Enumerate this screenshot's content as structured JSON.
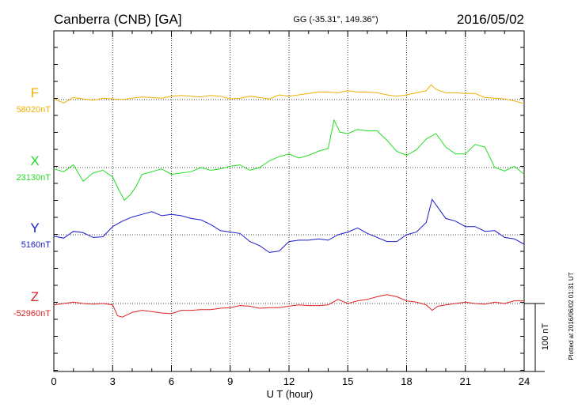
{
  "header": {
    "station": "Canberra (CNB)  [GA]",
    "coords": "GG (-35.31°, 149.36°)",
    "date": "2016/05/02"
  },
  "footer": {
    "plotted": "Plotted at 2016/06/02 01:31  UT"
  },
  "colors": {
    "F": "#f0b000",
    "X": "#22dd22",
    "Y": "#1a1acc",
    "Z": "#dd2222"
  },
  "chart_data": {
    "type": "line",
    "xlabel": "U T (hour)",
    "xlim": [
      0,
      24
    ],
    "xticks": [
      0,
      3,
      6,
      9,
      12,
      15,
      18,
      21,
      24
    ],
    "grid": true,
    "scale_bar": {
      "label": "100 nT",
      "value_nT": 100
    },
    "series": [
      {
        "name": "F",
        "baseline_label": "58020nT",
        "baseline": 58020,
        "x": [
          0,
          0.5,
          1,
          1.5,
          2,
          2.5,
          3,
          3.5,
          4,
          4.5,
          5,
          5.5,
          6,
          6.5,
          7,
          7.5,
          8,
          8.5,
          9,
          9.5,
          10,
          10.5,
          11,
          11.5,
          12,
          12.5,
          13,
          13.5,
          14,
          14.5,
          15,
          15.5,
          16,
          16.5,
          17,
          17.5,
          18,
          18.5,
          19,
          19.25,
          19.5,
          20,
          20.5,
          21,
          21.5,
          22,
          22.5,
          23,
          23.5,
          24
        ],
        "values": [
          58021,
          58015,
          58023,
          58021,
          58019,
          58022,
          58021,
          58020,
          58022,
          58024,
          58023,
          58022,
          58025,
          58026,
          58025,
          58024,
          58026,
          58025,
          58021,
          58022,
          58025,
          58023,
          58021,
          58027,
          58025,
          58027,
          58029,
          58031,
          58031,
          58030,
          58033,
          58031,
          58031,
          58030,
          58027,
          58025,
          58027,
          58030,
          58033,
          58042,
          58035,
          58030,
          58030,
          58029,
          58029,
          58023,
          58022,
          58021,
          58018,
          58014
        ]
      },
      {
        "name": "X",
        "baseline_label": "23130nT",
        "baseline": 23130,
        "x": [
          0,
          0.5,
          1,
          1.5,
          2,
          2.5,
          3,
          3.3,
          3.6,
          3.9,
          4.2,
          4.5,
          5,
          5.5,
          6,
          6.5,
          7,
          7.5,
          8,
          8.5,
          9,
          9.5,
          10,
          10.5,
          11,
          11.5,
          12,
          12.5,
          13,
          13.5,
          14,
          14.3,
          14.6,
          15,
          15.5,
          16,
          16.5,
          17,
          17.5,
          18,
          18.5,
          19,
          19.5,
          20,
          20.5,
          21,
          21.5,
          22,
          22.5,
          23,
          23.5,
          24
        ],
        "values": [
          23128,
          23124,
          23134,
          23110,
          23122,
          23126,
          23116,
          23098,
          23082,
          23090,
          23102,
          23120,
          23124,
          23128,
          23120,
          23122,
          23124,
          23130,
          23126,
          23128,
          23132,
          23134,
          23126,
          23130,
          23140,
          23146,
          23150,
          23144,
          23148,
          23154,
          23158,
          23200,
          23182,
          23180,
          23186,
          23184,
          23184,
          23170,
          23154,
          23148,
          23156,
          23172,
          23180,
          23160,
          23150,
          23150,
          23164,
          23160,
          23130,
          23125,
          23132,
          23120
        ]
      },
      {
        "name": "Y",
        "baseline_label": "5160nT",
        "baseline": 5160,
        "x": [
          0,
          0.5,
          1,
          1.5,
          2,
          2.5,
          3,
          3.5,
          4,
          4.5,
          5,
          5.5,
          6,
          6.5,
          7,
          7.5,
          8,
          8.5,
          9,
          9.5,
          10,
          10.5,
          11,
          11.5,
          12,
          12.5,
          13,
          13.5,
          14,
          14.5,
          15,
          15.5,
          16,
          16.5,
          17,
          17.5,
          18,
          18.5,
          19,
          19.3,
          19.6,
          20,
          20.5,
          21,
          21.5,
          22,
          22.5,
          23,
          23.5,
          24
        ],
        "values": [
          5158,
          5155,
          5165,
          5163,
          5156,
          5157,
          5172,
          5180,
          5186,
          5190,
          5194,
          5188,
          5190,
          5188,
          5184,
          5182,
          5175,
          5166,
          5164,
          5162,
          5150,
          5144,
          5134,
          5136,
          5150,
          5152,
          5152,
          5154,
          5152,
          5160,
          5164,
          5170,
          5162,
          5156,
          5150,
          5150,
          5160,
          5164,
          5178,
          5212,
          5200,
          5184,
          5180,
          5172,
          5172,
          5165,
          5166,
          5156,
          5154,
          5146
        ]
      },
      {
        "name": "Z",
        "baseline_label": "-52960nT",
        "baseline": -52960,
        "x": [
          0,
          0.5,
          1,
          1.5,
          2,
          2.5,
          3,
          3.25,
          3.5,
          4,
          4.5,
          5,
          5.5,
          6,
          6.5,
          7,
          7.5,
          8,
          8.5,
          9,
          9.5,
          10,
          10.5,
          11,
          11.5,
          12,
          12.5,
          13,
          13.5,
          14,
          14.5,
          15,
          15.5,
          16,
          16.5,
          17,
          17.5,
          18,
          18.5,
          19,
          19.3,
          19.6,
          20,
          20.5,
          21,
          21.5,
          22,
          22.5,
          23,
          23.5,
          24
        ],
        "values": [
          -52962,
          -52960,
          -52958,
          -52960,
          -52961,
          -52960,
          -52962,
          -52978,
          -52980,
          -52973,
          -52970,
          -52972,
          -52974,
          -52975,
          -52970,
          -52970,
          -52969,
          -52969,
          -52967,
          -52966,
          -52963,
          -52964,
          -52967,
          -52966,
          -52966,
          -52964,
          -52962,
          -52963,
          -52963,
          -52962,
          -52954,
          -52960,
          -52956,
          -52954,
          -52950,
          -52947,
          -52950,
          -52956,
          -52958,
          -52962,
          -52970,
          -52964,
          -52962,
          -52960,
          -52958,
          -52960,
          -52961,
          -52958,
          -52960,
          -52956,
          -52956
        ]
      }
    ]
  }
}
